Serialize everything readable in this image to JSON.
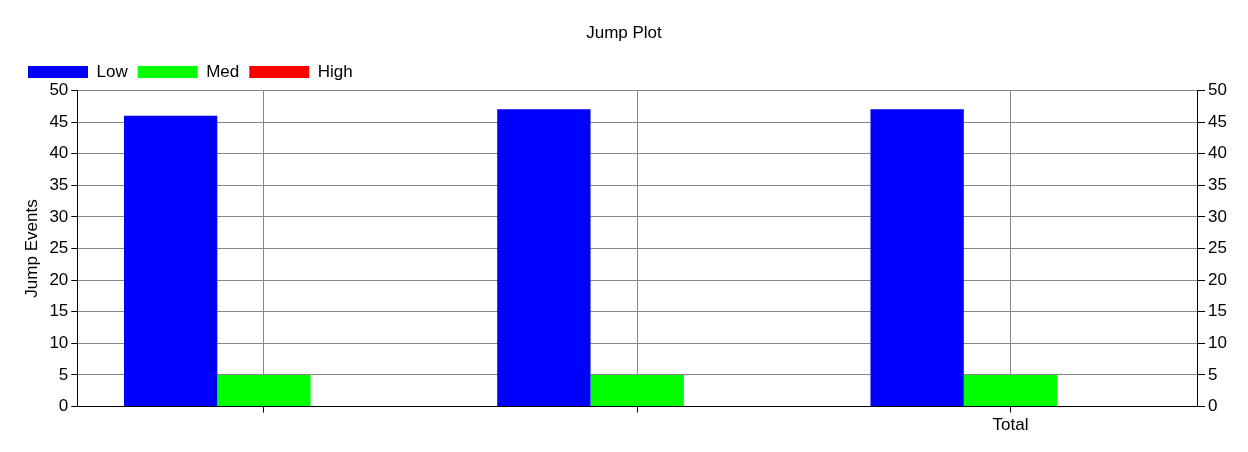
{
  "chart_data": {
    "type": "bar",
    "title": "Jump Plot",
    "ylabel": "Jump Events",
    "categories": [
      null,
      null,
      "Total"
    ],
    "series": [
      {
        "name": "Low",
        "color": "#0000ff",
        "values": [
          46,
          47,
          47
        ]
      },
      {
        "name": "Med",
        "color": "#00ff00",
        "values": [
          5,
          5,
          5
        ]
      },
      {
        "name": "High",
        "color": "#ff0000",
        "values": [
          0,
          0,
          0
        ]
      }
    ],
    "ylim": [
      0,
      50
    ],
    "yticks": [
      0,
      5,
      10,
      15,
      20,
      25,
      30,
      35,
      40,
      45,
      50
    ],
    "y2lim": [
      0,
      50
    ],
    "y2ticks": [
      0,
      5,
      10,
      15,
      20,
      25,
      30,
      35,
      40,
      45,
      50
    ],
    "grid": true,
    "legend": "top left"
  }
}
